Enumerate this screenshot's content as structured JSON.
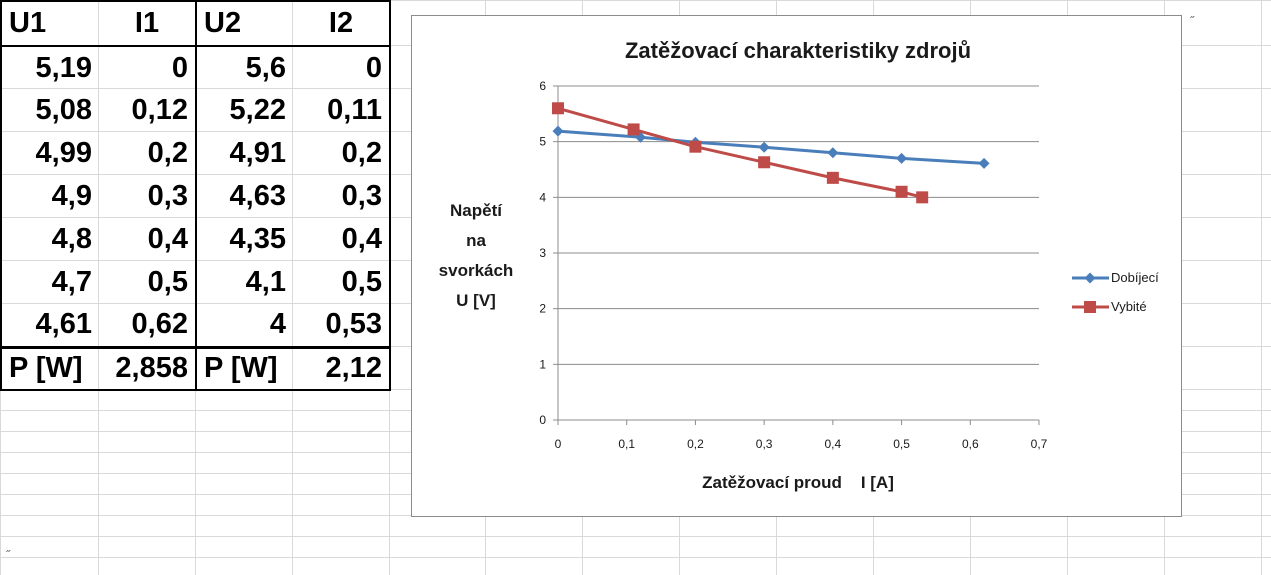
{
  "table": {
    "headers": [
      "U1",
      "I1",
      "U2",
      "I2"
    ],
    "rows": [
      [
        "5,19",
        "0",
        "5,6",
        "0"
      ],
      [
        "5,08",
        "0,12",
        "5,22",
        "0,11"
      ],
      [
        "4,99",
        "0,2",
        "4,91",
        "0,2"
      ],
      [
        "4,9",
        "0,3",
        "4,63",
        "0,3"
      ],
      [
        "4,8",
        "0,4",
        "4,35",
        "0,4"
      ],
      [
        "4,7",
        "0,5",
        "4,1",
        "0,5"
      ],
      [
        "4,61",
        "0,62",
        "4",
        "0,53"
      ]
    ],
    "power_row": [
      "P [W]",
      "2,858",
      "P [W]",
      "2,12"
    ]
  },
  "marks": {
    "top_right": "˝",
    "bottom_left": "˝"
  },
  "chart_data": {
    "type": "line",
    "title": "Zatěžovací charakteristiky zdrojů",
    "xlabel": "Zatěžovací proud    I [A]",
    "ylabel_lines": [
      "Napětí",
      "na",
      "svorkách",
      "U [V]"
    ],
    "xlim": [
      0,
      0.7
    ],
    "ylim": [
      0,
      6
    ],
    "x_ticks": [
      0,
      0.1,
      0.2,
      0.3,
      0.4,
      0.5,
      0.6,
      0.7
    ],
    "x_tick_labels": [
      "0",
      "0,1",
      "0,2",
      "0,3",
      "0,4",
      "0,5",
      "0,6",
      "0,7"
    ],
    "y_ticks": [
      0,
      1,
      2,
      3,
      4,
      5,
      6
    ],
    "y_tick_labels": [
      "0",
      "1",
      "2",
      "3",
      "4",
      "5",
      "6"
    ],
    "grid": "horizontal",
    "legend_position": "right",
    "series": [
      {
        "name": "Dobíjecí",
        "color": "#4a7ebb",
        "marker": "diamond",
        "x": [
          0,
          0.12,
          0.2,
          0.3,
          0.4,
          0.5,
          0.62
        ],
        "y": [
          5.19,
          5.08,
          4.99,
          4.9,
          4.8,
          4.7,
          4.61
        ]
      },
      {
        "name": "Vybité",
        "color": "#be4b48",
        "marker": "square",
        "x": [
          0,
          0.11,
          0.2,
          0.3,
          0.4,
          0.5,
          0.53
        ],
        "y": [
          5.6,
          5.22,
          4.91,
          4.63,
          4.35,
          4.1,
          4.0
        ]
      }
    ]
  }
}
